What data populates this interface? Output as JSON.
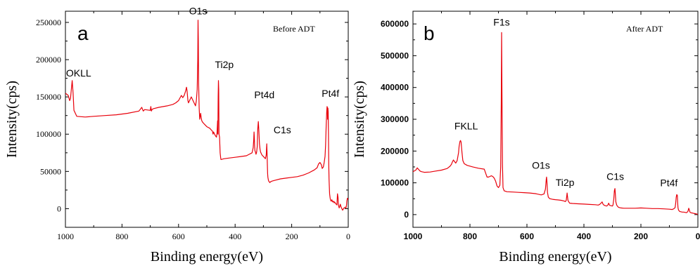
{
  "chart_data": [
    {
      "type": "line",
      "panel_label": "a",
      "annotation": "Before ADT",
      "xlabel": "Binding energy(eV)",
      "ylabel": "Intensity(cps)",
      "xlim": [
        1000,
        0
      ],
      "ylim": [
        -25000,
        265000
      ],
      "x_ticks": [
        1000,
        800,
        600,
        400,
        200,
        0
      ],
      "y_ticks": [
        0,
        50000,
        100000,
        150000,
        200000,
        250000
      ],
      "color": "#e8000b",
      "peak_labels": [
        {
          "text": "OKLL",
          "x": 978,
          "y": 172000
        },
        {
          "text": "O1s",
          "x": 531,
          "y": 253000
        },
        {
          "text": "Ti2p",
          "x": 459,
          "y": 172000
        },
        {
          "text": "Pt4d",
          "x": 320,
          "y": 135000
        },
        {
          "text": "C1s",
          "x": 284,
          "y": 90000
        },
        {
          "text": "Pt4f",
          "x": 74,
          "y": 137000
        }
      ],
      "series": [
        {
          "x": [
            1000,
            990,
            985,
            982,
            979,
            976,
            973,
            970,
            960,
            930,
            900,
            860,
            820,
            780,
            740,
            730,
            725,
            720,
            700,
            698,
            696,
            694,
            690,
            670,
            640,
            620,
            610,
            600,
            590,
            585,
            580,
            575,
            572,
            570,
            567,
            565,
            560,
            555,
            545,
            540,
            537,
            534,
            532,
            531,
            530,
            529,
            527,
            525,
            522,
            520,
            518,
            515,
            510,
            500,
            490,
            485,
            480,
            478,
            476,
            474,
            470,
            466,
            464,
            462,
            461,
            460,
            459,
            458,
            457,
            455,
            453,
            451,
            450,
            440,
            420,
            400,
            380,
            360,
            350,
            340,
            336,
            334,
            333,
            332,
            331,
            330,
            328,
            326,
            324,
            322,
            320,
            318,
            316,
            314,
            312,
            310,
            305,
            300,
            295,
            293,
            290,
            288,
            287,
            286,
            285,
            284,
            283,
            282,
            281,
            279,
            277,
            275,
            270,
            260,
            240,
            220,
            200,
            180,
            160,
            140,
            120,
            110,
            105,
            100,
            95,
            92,
            88,
            85,
            82,
            80,
            78,
            76,
            75,
            74,
            73,
            72,
            71,
            70,
            69,
            68,
            66,
            64,
            62,
            60,
            58,
            55,
            52,
            50,
            48,
            45,
            40,
            38,
            36,
            35,
            34,
            32,
            30,
            28,
            25,
            20,
            15,
            10,
            8,
            6,
            5,
            3,
            0
          ],
          "y": [
            155000,
            152000,
            145000,
            148000,
            160000,
            172000,
            155000,
            132000,
            124000,
            123000,
            124000,
            125000,
            126000,
            128000,
            131000,
            136000,
            131000,
            133000,
            132000,
            137000,
            131000,
            133000,
            134000,
            136000,
            138000,
            140000,
            142000,
            145000,
            152000,
            149000,
            152000,
            158000,
            163000,
            158000,
            145000,
            142000,
            146000,
            150000,
            142000,
            138000,
            145000,
            160000,
            200000,
            253000,
            225000,
            170000,
            135000,
            120000,
            128000,
            122000,
            118000,
            116000,
            114000,
            110000,
            108000,
            106000,
            104000,
            100000,
            103000,
            101000,
            98000,
            96000,
            102000,
            118000,
            100000,
            150000,
            172000,
            160000,
            100000,
            96000,
            75000,
            68000,
            66000,
            67000,
            68000,
            69000,
            70000,
            71000,
            73000,
            75000,
            82000,
            93000,
            103000,
            96000,
            85000,
            78000,
            76000,
            73000,
            76000,
            83000,
            107000,
            117000,
            104000,
            87000,
            80000,
            76000,
            72000,
            70000,
            68000,
            67000,
            72000,
            87000,
            75000,
            60000,
            47000,
            42000,
            40000,
            38000,
            37000,
            36000,
            35000,
            36000,
            37000,
            38000,
            40000,
            41000,
            42000,
            43000,
            45000,
            48000,
            52000,
            55000,
            60000,
            62000,
            59000,
            54000,
            56000,
            62000,
            70000,
            85000,
            110000,
            130000,
            137000,
            136000,
            120000,
            135000,
            130000,
            100000,
            60000,
            40000,
            20000,
            14000,
            11000,
            10000,
            12000,
            9000,
            10000,
            8000,
            9000,
            7000,
            5000,
            20000,
            15000,
            6000,
            4000,
            1000,
            3000,
            6000,
            2000,
            -2000,
            1000,
            2000,
            1000,
            5000,
            10000,
            14000,
            12000
          ]
        }
      ]
    },
    {
      "type": "line",
      "panel_label": "b",
      "annotation": "After ADT",
      "xlabel": "Binding energy(eV)",
      "ylabel": "Intensity(cps)",
      "xlim": [
        1000,
        0
      ],
      "ylim": [
        -40000,
        640000
      ],
      "x_ticks": [
        1000,
        800,
        600,
        400,
        200,
        0
      ],
      "y_ticks": [
        0,
        100000,
        200000,
        300000,
        400000,
        500000,
        600000
      ],
      "color": "#e8000b",
      "peak_labels": [
        {
          "text": "F1s",
          "x": 689,
          "y": 573000
        },
        {
          "text": "FKLL",
          "x": 833,
          "y": 233000
        },
        {
          "text": "O1s",
          "x": 531,
          "y": 118000
        },
        {
          "text": "Ti2p",
          "x": 459,
          "y": 68000
        },
        {
          "text": "C1s",
          "x": 290,
          "y": 82000
        },
        {
          "text": "Pt4f",
          "x": 72,
          "y": 63000
        }
      ],
      "series": [
        {
          "x": [
            1000,
            990,
            985,
            980,
            975,
            970,
            960,
            940,
            920,
            900,
            880,
            870,
            865,
            862,
            858,
            855,
            850,
            845,
            840,
            838,
            835,
            833,
            831,
            828,
            825,
            820,
            810,
            790,
            770,
            750,
            740,
            735,
            730,
            725,
            720,
            715,
            710,
            705,
            700,
            695,
            692,
            690,
            689,
            688,
            686,
            684,
            680,
            670,
            650,
            630,
            610,
            590,
            570,
            550,
            540,
            535,
            532,
            531,
            530,
            528,
            525,
            520,
            510,
            500,
            490,
            480,
            470,
            465,
            462,
            460,
            459,
            458,
            456,
            453,
            450,
            440,
            420,
            400,
            380,
            360,
            350,
            345,
            340,
            336,
            333,
            330,
            325,
            320,
            316,
            313,
            310,
            300,
            298,
            295,
            293,
            291,
            290,
            288,
            285,
            282,
            280,
            278,
            275,
            270,
            260,
            240,
            220,
            200,
            180,
            160,
            140,
            120,
            100,
            90,
            85,
            80,
            78,
            76,
            74,
            72,
            71,
            70,
            68,
            66,
            64,
            60,
            55,
            50,
            45,
            40,
            35,
            32,
            30,
            28,
            25,
            20,
            15,
            10,
            5,
            0
          ],
          "y": [
            135000,
            140000,
            147000,
            142000,
            137000,
            135000,
            133000,
            134000,
            137000,
            140000,
            145000,
            152000,
            158000,
            165000,
            172000,
            168000,
            162000,
            170000,
            195000,
            215000,
            230000,
            233000,
            228000,
            195000,
            170000,
            160000,
            155000,
            150000,
            146000,
            143000,
            118000,
            118000,
            120000,
            122000,
            120000,
            115000,
            105000,
            90000,
            85000,
            92000,
            150000,
            350000,
            573000,
            420000,
            160000,
            85000,
            75000,
            72000,
            71000,
            70000,
            69000,
            68000,
            66000,
            62000,
            65000,
            80000,
            112000,
            118000,
            105000,
            70000,
            55000,
            50000,
            48000,
            47000,
            46000,
            45000,
            43000,
            41000,
            45000,
            60000,
            68000,
            60000,
            45000,
            40000,
            36000,
            35000,
            34000,
            33000,
            32000,
            31000,
            30000,
            32000,
            36000,
            40000,
            33000,
            30000,
            28000,
            27000,
            30000,
            36000,
            29000,
            27000,
            30000,
            50000,
            75000,
            82000,
            70000,
            40000,
            30000,
            26000,
            24000,
            23000,
            22000,
            21000,
            20000,
            20000,
            20000,
            21000,
            20000,
            19000,
            19000,
            18000,
            17000,
            16000,
            18000,
            22000,
            35000,
            55000,
            63000,
            60000,
            40000,
            22000,
            14000,
            12000,
            10000,
            9000,
            8000,
            8000,
            7000,
            6000,
            10000,
            20000,
            15000,
            8000,
            6000,
            5000,
            4000,
            3000,
            2000,
            1000
          ]
        }
      ]
    }
  ]
}
